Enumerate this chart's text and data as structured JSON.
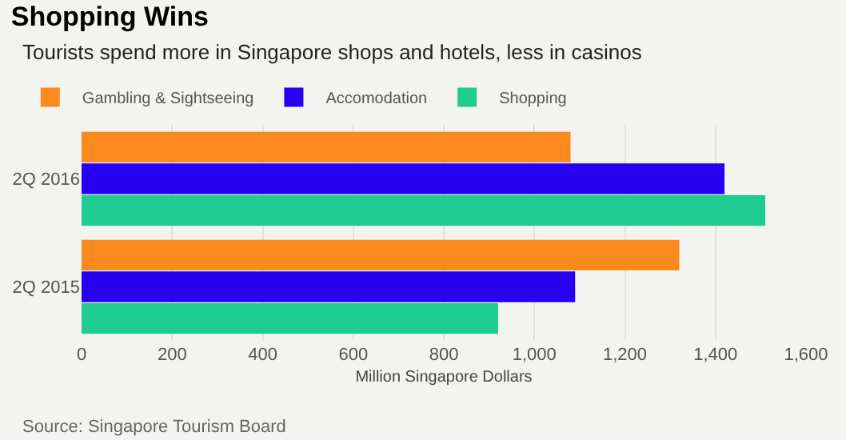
{
  "chart_data": {
    "type": "bar",
    "orientation": "horizontal",
    "title": "Shopping Wins",
    "subtitle": "Tourists spend more in Singapore shops and hotels, less in casinos",
    "xlabel": "Million Singapore Dollars",
    "categories": [
      "2Q 2016",
      "2Q 2015"
    ],
    "series": [
      {
        "name": "Gambling & Sightseeing",
        "color": "#fb8a1e",
        "values": [
          1080,
          1320
        ]
      },
      {
        "name": "Accomodation",
        "color": "#2800f0",
        "values": [
          1420,
          1090
        ]
      },
      {
        "name": "Shopping",
        "color": "#1ecc92",
        "values": [
          1510,
          920
        ]
      }
    ],
    "xlim": [
      0,
      1600
    ],
    "xticks": [
      0,
      200,
      400,
      600,
      800,
      {
        "value": 1000,
        "label": "1,000"
      },
      {
        "value": 1200,
        "label": "1,200"
      },
      {
        "value": 1400,
        "label": "1,400"
      },
      {
        "value": 1600,
        "label": "1,600"
      }
    ],
    "grid": "x",
    "legend": "top left",
    "annotations": [
      "Source: Singapore Tourism Board"
    ]
  }
}
